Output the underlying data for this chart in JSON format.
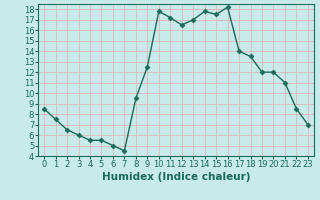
{
  "x": [
    0,
    1,
    2,
    3,
    4,
    5,
    6,
    7,
    8,
    9,
    10,
    11,
    12,
    13,
    14,
    15,
    16,
    17,
    18,
    19,
    20,
    21,
    22,
    23
  ],
  "y": [
    8.5,
    7.5,
    6.5,
    6.0,
    5.5,
    5.5,
    5.0,
    4.5,
    9.5,
    12.5,
    17.8,
    17.2,
    16.5,
    17.0,
    17.8,
    17.5,
    18.2,
    14.0,
    13.5,
    12.0,
    12.0,
    11.0,
    8.5,
    7.0
  ],
  "line_color": "#1a6b5a",
  "marker": "D",
  "marker_size": 2.5,
  "bg_color": "#c8eae8",
  "grid_color": "#dbb8b8",
  "xlabel": "Humidex (Indice chaleur)",
  "ylim": [
    4,
    18.5
  ],
  "xlim": [
    -0.5,
    23.5
  ],
  "yticks": [
    4,
    5,
    6,
    7,
    8,
    9,
    10,
    11,
    12,
    13,
    14,
    15,
    16,
    17,
    18
  ],
  "xticks": [
    0,
    1,
    2,
    3,
    4,
    5,
    6,
    7,
    8,
    9,
    10,
    11,
    12,
    13,
    14,
    15,
    16,
    17,
    18,
    19,
    20,
    21,
    22,
    23
  ],
  "tick_label_fontsize": 6,
  "xlabel_fontsize": 7.5,
  "linewidth": 1.0
}
